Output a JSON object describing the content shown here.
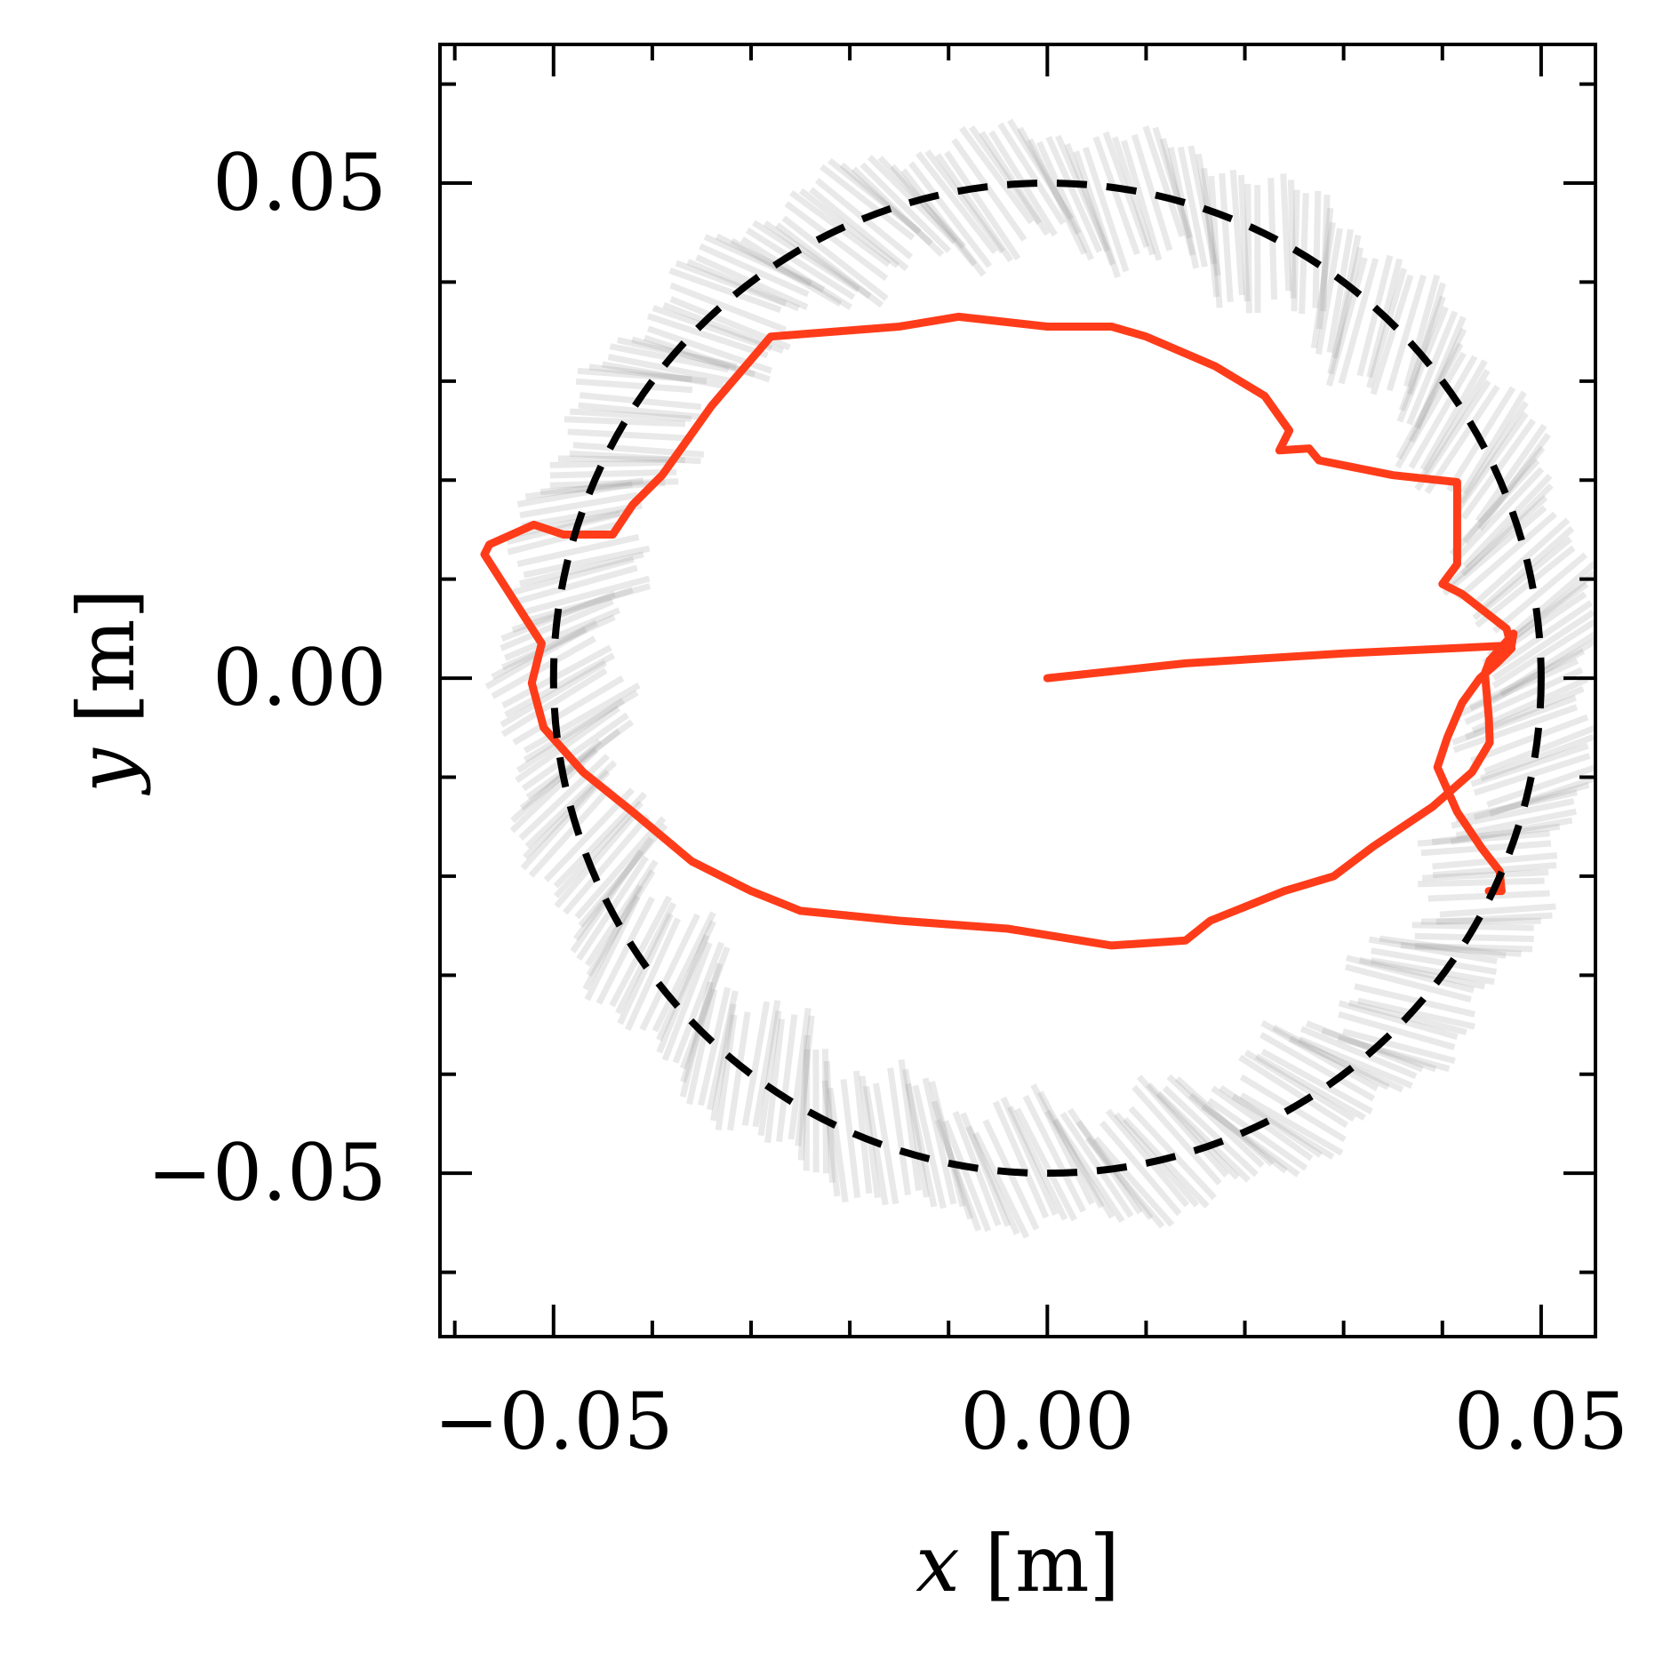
{
  "chart_data": {
    "type": "line",
    "title": "",
    "xlabel": {
      "var": "x",
      "unit": " [m]"
    },
    "ylabel": {
      "var": "y",
      "unit": " [m]"
    },
    "xlim": [
      -0.0615,
      0.0555
    ],
    "ylim": [
      -0.0665,
      0.064
    ],
    "xticks": [
      {
        "value": -0.05,
        "label": "−0.05"
      },
      {
        "value": 0.0,
        "label": "0.00"
      },
      {
        "value": 0.05,
        "label": "0.05"
      }
    ],
    "yticks": [
      {
        "value": 0.05,
        "label": "0.05"
      },
      {
        "value": 0.0,
        "label": "0.00"
      },
      {
        "value": -0.05,
        "label": "−0.05"
      }
    ],
    "grid": false,
    "legend": "none",
    "reference_circle": {
      "name": "target circle",
      "center": [
        0.0,
        0.0
      ],
      "radius": 0.05,
      "style": "dashed",
      "color": "#000000"
    },
    "fan": {
      "name": "sampled rollouts (grey band)",
      "color": "#9a9a9a",
      "inner_radius": 0.044,
      "outer_radius": 0.055
    },
    "series": [
      {
        "name": "trajectory",
        "color": "#ff3c1a",
        "x": [
          0.0,
          0.014,
          0.03,
          0.047,
          0.0472,
          0.0448,
          0.0443,
          0.0447,
          0.0448,
          0.043,
          0.039,
          0.033,
          0.029,
          0.024,
          0.0165,
          0.014,
          0.0065,
          -0.004,
          -0.015,
          -0.025,
          -0.03,
          -0.036,
          -0.042,
          -0.047,
          -0.051,
          -0.0522,
          -0.0512,
          -0.057,
          -0.0565,
          -0.052,
          -0.049,
          -0.044,
          -0.042,
          -0.039,
          -0.034,
          -0.028,
          -0.028,
          -0.015,
          -0.009,
          0.0,
          0.0065,
          0.01,
          0.017,
          0.022,
          0.0245,
          0.0235,
          0.0265,
          0.0275,
          0.035,
          0.0415,
          0.0415,
          0.04,
          0.042,
          0.0465,
          0.047,
          0.0455,
          0.0438,
          0.042,
          0.0405,
          0.0395,
          0.0415,
          0.044,
          0.0458,
          0.046,
          0.0447
        ],
        "y": [
          0.0,
          0.0015,
          0.0025,
          0.0033,
          0.0045,
          0.0018,
          0.0005,
          -0.004,
          -0.0065,
          -0.0095,
          -0.013,
          -0.017,
          -0.02,
          -0.0215,
          -0.0245,
          -0.0265,
          -0.027,
          -0.0253,
          -0.0245,
          -0.0235,
          -0.0215,
          -0.0185,
          -0.0135,
          -0.0095,
          -0.005,
          -0.0005,
          0.0035,
          0.0125,
          0.0135,
          0.0155,
          0.0145,
          0.0145,
          0.0175,
          0.0205,
          0.0275,
          0.0345,
          0.0345,
          0.0355,
          0.0365,
          0.0355,
          0.0355,
          0.0345,
          0.0315,
          0.0285,
          0.025,
          0.023,
          0.0232,
          0.022,
          0.0205,
          0.0198,
          0.0115,
          0.0095,
          0.0085,
          0.005,
          0.003,
          0.0015,
          0.0,
          -0.0025,
          -0.006,
          -0.009,
          -0.0135,
          -0.0172,
          -0.0195,
          -0.0215,
          -0.0215
        ]
      }
    ]
  }
}
